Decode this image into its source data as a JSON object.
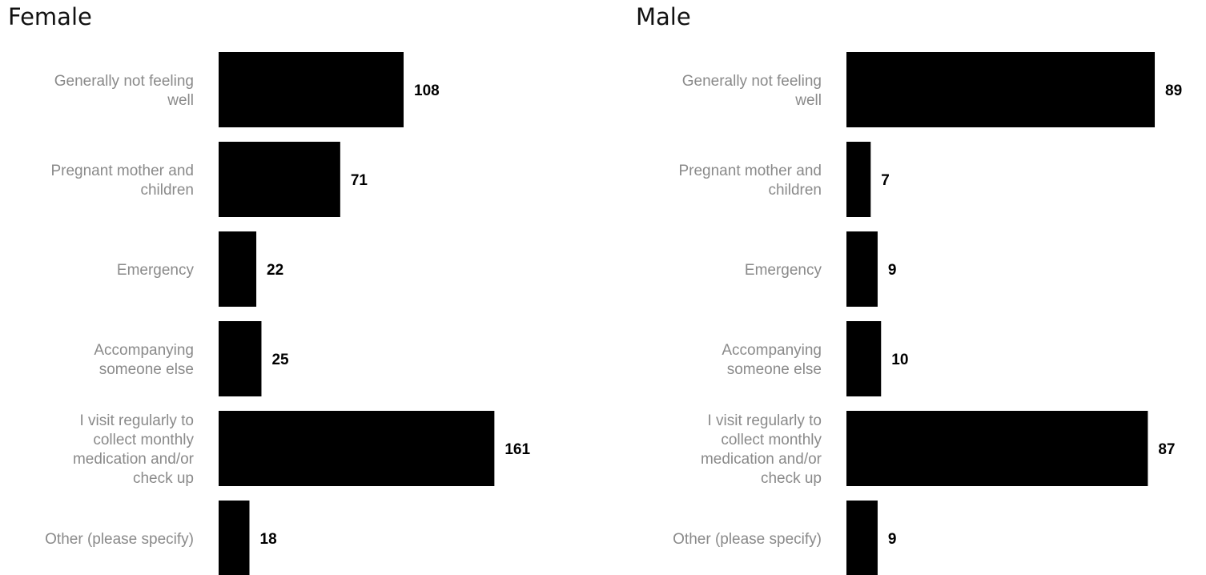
{
  "chart_data": [
    {
      "type": "bar",
      "orientation": "horizontal",
      "title": "Female",
      "categories": [
        [
          "Generally not feeling",
          "well"
        ],
        [
          "Pregnant mother and",
          "children"
        ],
        [
          "Emergency"
        ],
        [
          "Accompanying",
          "someone else"
        ],
        [
          "I visit regularly to",
          "collect monthly",
          "medication and/or",
          "check up"
        ],
        [
          "Other (please specify)"
        ]
      ],
      "values": [
        108,
        71,
        22,
        25,
        161,
        18
      ],
      "value_labels": [
        "108",
        "71",
        "22",
        "25",
        "161",
        "18"
      ],
      "xlim": [
        0,
        180
      ],
      "bar_color": "#000000",
      "label_color": "#8a8a8a",
      "grid": false
    },
    {
      "type": "bar",
      "orientation": "horizontal",
      "title": "Male",
      "categories": [
        [
          "Generally not feeling",
          "well"
        ],
        [
          "Pregnant mother and",
          "children"
        ],
        [
          "Emergency"
        ],
        [
          "Accompanying",
          "someone else"
        ],
        [
          "I visit regularly to",
          "collect monthly",
          "medication and/or",
          "check up"
        ],
        [
          "Other (please specify)"
        ]
      ],
      "values": [
        89,
        7,
        9,
        10,
        87,
        9
      ],
      "value_labels": [
        "89",
        "7",
        "9",
        "10",
        "87",
        "9"
      ],
      "xlim": [
        0,
        92
      ],
      "bar_color": "#000000",
      "label_color": "#8a8a8a",
      "grid": false
    }
  ]
}
